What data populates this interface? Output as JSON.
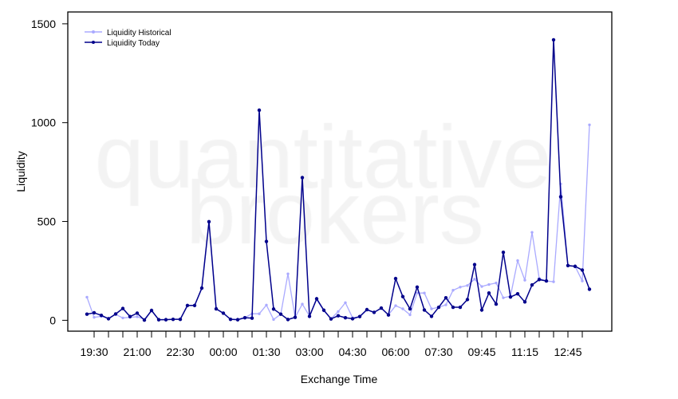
{
  "chart_data": {
    "type": "line",
    "title": "",
    "xlabel": "Exchange Time",
    "ylabel": "Liquidity",
    "ylim": [
      -55,
      1560
    ],
    "y_ticks": [
      0,
      500,
      1000,
      1500
    ],
    "x_tick_labels": [
      {
        "index": 1,
        "label": "19:30"
      },
      {
        "index": 7,
        "label": "21:00"
      },
      {
        "index": 13,
        "label": "22:30"
      },
      {
        "index": 19,
        "label": "00:00"
      },
      {
        "index": 25,
        "label": "01:30"
      },
      {
        "index": 31,
        "label": "03:00"
      },
      {
        "index": 37,
        "label": "04:30"
      },
      {
        "index": 43,
        "label": "06:00"
      },
      {
        "index": 49,
        "label": "07:30"
      },
      {
        "index": 55,
        "label": "09:45"
      },
      {
        "index": 61,
        "label": "11:15"
      },
      {
        "index": 67,
        "label": "12:45"
      }
    ],
    "grid": false,
    "legend_position": "top-left",
    "watermark": [
      "quantitative",
      "brokers"
    ],
    "series": [
      {
        "name": "Liquidity Historical",
        "color": "#aaaaff",
        "values": [
          117,
          15,
          20,
          10,
          30,
          12,
          15,
          18,
          5,
          48,
          3,
          4,
          5,
          6,
          74,
          76,
          160,
          495,
          57,
          36,
          6,
          4,
          14,
          33,
          33,
          77,
          4,
          31,
          235,
          15,
          82,
          22,
          105,
          48,
          8,
          44,
          89,
          13,
          18,
          52,
          40,
          60,
          28,
          74,
          58,
          28,
          138,
          138,
          58,
          66,
          78,
          152,
          168,
          176,
          208,
          171,
          181,
          189,
          114,
          122,
          302,
          203,
          445,
          212,
          199,
          195,
          690,
          277,
          273,
          199,
          989
        ]
      },
      {
        "name": "Liquidity Today",
        "color": "#00008b",
        "values": [
          31,
          38,
          25,
          8,
          32,
          60,
          19,
          36,
          1,
          50,
          3,
          3,
          5,
          5,
          75,
          75,
          163,
          499,
          58,
          36,
          5,
          3,
          13,
          11,
          1063,
          399,
          57,
          31,
          4,
          15,
          722,
          20,
          109,
          51,
          7,
          23,
          13,
          8,
          19,
          54,
          40,
          62,
          27,
          211,
          120,
          58,
          168,
          52,
          20,
          66,
          114,
          66,
          66,
          105,
          282,
          52,
          138,
          82,
          344,
          118,
          134,
          93,
          179,
          206,
          199,
          1419,
          625,
          277,
          273,
          254,
          157
        ]
      }
    ]
  }
}
